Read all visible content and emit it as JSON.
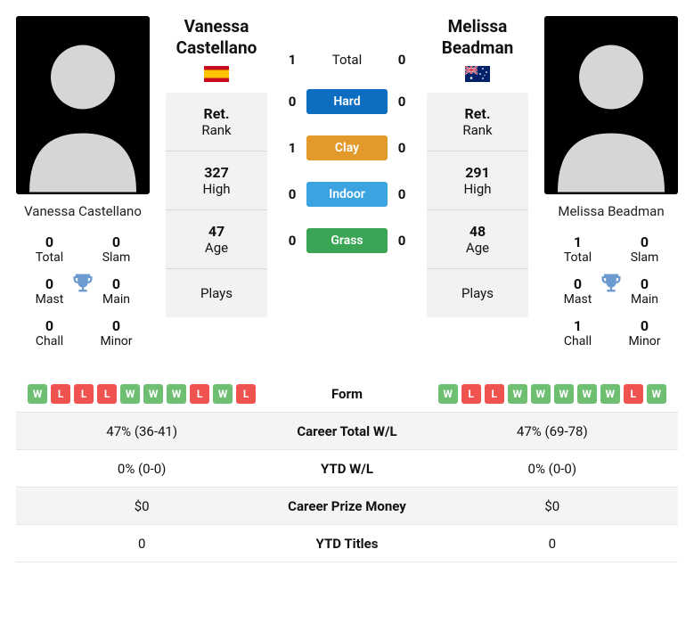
{
  "colors": {
    "win": "#6fbf73",
    "loss": "#ef5350",
    "hard": "#0d6dc1",
    "clay": "#e39a2d",
    "indoor": "#3ba4e0",
    "grass": "#3aa655",
    "trophy": "#6b9bd1"
  },
  "left": {
    "name": "Vanessa Castellano",
    "short_name": "Vanessa\nCastellano",
    "flag": "spain",
    "titles": {
      "total": "0",
      "slam": "0",
      "mast": "0",
      "main": "0",
      "chall": "0",
      "minor": "0"
    },
    "meta": {
      "ret_rank_label": "Ret.",
      "rank_label": "Rank",
      "high": "327",
      "high_label": "High",
      "age": "47",
      "age_label": "Age",
      "plays_label": "Plays"
    }
  },
  "right": {
    "name": "Melissa Beadman",
    "short_name": "Melissa\nBeadman",
    "flag": "australia",
    "titles": {
      "total": "1",
      "slam": "0",
      "mast": "0",
      "main": "0",
      "chall": "1",
      "minor": "0"
    },
    "meta": {
      "ret_rank_label": "Ret.",
      "rank_label": "Rank",
      "high": "291",
      "high_label": "High",
      "age": "48",
      "age_label": "Age",
      "plays_label": "Plays"
    }
  },
  "h2h": {
    "total_label": "Total",
    "rows": [
      {
        "left": "1",
        "label": "Total",
        "right": "0",
        "type": "text"
      },
      {
        "left": "0",
        "label": "Hard",
        "right": "0",
        "type": "surface",
        "color_key": "hard"
      },
      {
        "left": "1",
        "label": "Clay",
        "right": "0",
        "type": "surface",
        "color_key": "clay"
      },
      {
        "left": "0",
        "label": "Indoor",
        "right": "0",
        "type": "surface",
        "color_key": "indoor"
      },
      {
        "left": "0",
        "label": "Grass",
        "right": "0",
        "type": "surface",
        "color_key": "grass"
      }
    ]
  },
  "titles_labels": {
    "total": "Total",
    "slam": "Slam",
    "mast": "Mast",
    "main": "Main",
    "chall": "Chall",
    "minor": "Minor"
  },
  "stats": {
    "rows": [
      {
        "type": "form",
        "label": "Form",
        "left": [
          "W",
          "L",
          "L",
          "L",
          "W",
          "W",
          "W",
          "L",
          "W",
          "L"
        ],
        "right": [
          "W",
          "L",
          "L",
          "W",
          "W",
          "W",
          "W",
          "W",
          "L",
          "W"
        ]
      },
      {
        "type": "text",
        "label": "Career Total W/L",
        "left": "47% (36-41)",
        "right": "47% (69-78)"
      },
      {
        "type": "text",
        "label": "YTD W/L",
        "left": "0% (0-0)",
        "right": "0% (0-0)"
      },
      {
        "type": "text",
        "label": "Career Prize Money",
        "left": "$0",
        "right": "$0"
      },
      {
        "type": "text",
        "label": "YTD Titles",
        "left": "0",
        "right": "0"
      }
    ]
  }
}
